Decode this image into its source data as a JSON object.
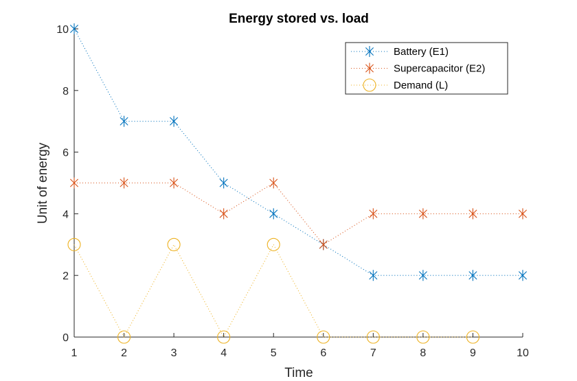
{
  "chart_data": {
    "type": "line",
    "title": "Energy stored vs. load",
    "xlabel": "Time",
    "ylabel": "Unit of energy",
    "x": [
      1,
      2,
      3,
      4,
      5,
      6,
      7,
      8,
      9,
      10
    ],
    "xlim": [
      1,
      10
    ],
    "ylim": [
      0,
      10
    ],
    "xticks": [
      "1",
      "2",
      "3",
      "4",
      "5",
      "6",
      "7",
      "8",
      "9",
      "10"
    ],
    "yticks": [
      "0",
      "2",
      "4",
      "6",
      "8",
      "10"
    ],
    "grid": false,
    "legend_position": "top-right",
    "series": [
      {
        "name": "Battery (E1)",
        "color": "#0072BD",
        "marker": "asterisk",
        "line": "dotted",
        "values": [
          10,
          7,
          7,
          5,
          4,
          3,
          2,
          2,
          2,
          2
        ]
      },
      {
        "name": "Supercapacitor (E2)",
        "color": "#D95319",
        "marker": "asterisk",
        "line": "dotted",
        "values": [
          5,
          5,
          5,
          4,
          5,
          3,
          4,
          4,
          4,
          4
        ]
      },
      {
        "name": "Demand (L)",
        "color": "#EDB120",
        "marker": "circle",
        "line": "dotted",
        "values": [
          3,
          0,
          3,
          0,
          3,
          0,
          0,
          0,
          0,
          null
        ]
      }
    ]
  }
}
